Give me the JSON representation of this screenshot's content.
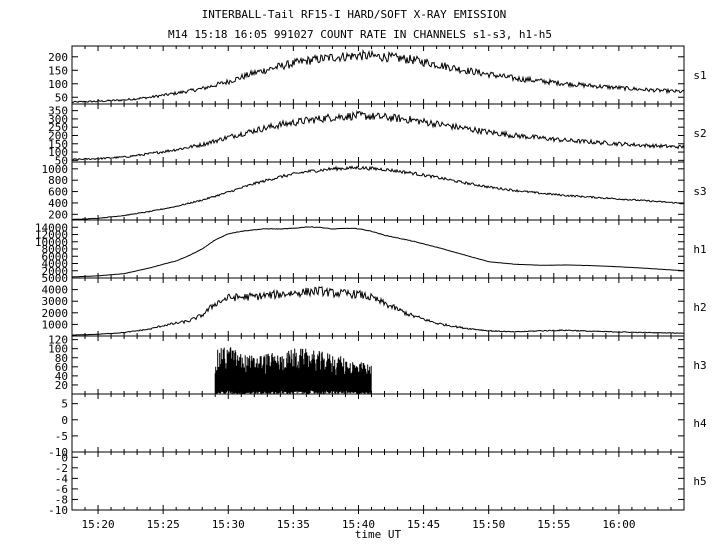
{
  "chart_data": {
    "type": "line",
    "title": "INTERBALL-Tail RF15-I HARD/SOFT X-RAY EMISSION",
    "subtitle": "M14  15:18 16:05 991027  COUNT RATE IN CHANNELS s1-s3, h1-h5",
    "xlabel": "time UT",
    "xlim": [
      "15:18",
      "16:05"
    ],
    "x_ticks": [
      "15:20",
      "15:25",
      "15:30",
      "15:35",
      "15:40",
      "15:45",
      "15:50",
      "15:55",
      "16:00"
    ],
    "panels": [
      {
        "name": "s1",
        "ylim": [
          25,
          240
        ],
        "y_ticks": [
          "200",
          "150",
          "100",
          "50"
        ],
        "x": [
          "15:18",
          "15:20",
          "15:22",
          "15:24",
          "15:26",
          "15:28",
          "15:30",
          "15:32",
          "15:34",
          "15:36",
          "15:38",
          "15:40",
          "15:42",
          "15:44",
          "15:46",
          "15:48",
          "15:50",
          "15:52",
          "15:54",
          "15:56",
          "15:58",
          "16:00",
          "16:02",
          "16:05"
        ],
        "y": [
          32,
          35,
          40,
          50,
          65,
          82,
          108,
          140,
          165,
          185,
          198,
          205,
          200,
          190,
          172,
          152,
          135,
          120,
          110,
          100,
          92,
          85,
          78,
          70
        ]
      },
      {
        "name": "s2",
        "ylim": [
          40,
          390
        ],
        "y_ticks": [
          "350",
          "300",
          "250",
          "200",
          "150",
          "100",
          "50"
        ],
        "x": [
          "15:18",
          "15:20",
          "15:22",
          "15:24",
          "15:26",
          "15:28",
          "15:30",
          "15:32",
          "15:34",
          "15:36",
          "15:38",
          "15:40",
          "15:42",
          "15:44",
          "15:46",
          "15:48",
          "15:50",
          "15:52",
          "15:54",
          "15:56",
          "15:58",
          "16:00",
          "16:02",
          "16:05"
        ],
        "y": [
          55,
          60,
          70,
          90,
          115,
          145,
          190,
          230,
          265,
          290,
          310,
          320,
          310,
          295,
          270,
          245,
          220,
          200,
          185,
          170,
          160,
          150,
          140,
          130
        ]
      },
      {
        "name": "s3",
        "ylim": [
          100,
          1120
        ],
        "y_ticks": [
          "1000",
          "800",
          "600",
          "400",
          "200"
        ],
        "x": [
          "15:18",
          "15:20",
          "15:22",
          "15:24",
          "15:26",
          "15:28",
          "15:30",
          "15:32",
          "15:34",
          "15:36",
          "15:38",
          "15:40",
          "15:42",
          "15:44",
          "15:46",
          "15:48",
          "15:50",
          "15:52",
          "15:54",
          "15:56",
          "15:58",
          "16:00",
          "16:02",
          "16:05"
        ],
        "y": [
          110,
          130,
          180,
          250,
          340,
          450,
          590,
          740,
          860,
          950,
          1000,
          1020,
          990,
          930,
          850,
          760,
          680,
          620,
          570,
          530,
          500,
          470,
          440,
          390
        ]
      },
      {
        "name": "h1",
        "ylim": [
          0,
          16000
        ],
        "y_ticks": [
          "14000",
          "12000",
          "10000",
          "8000",
          "6000",
          "4000",
          "2000"
        ],
        "x": [
          "15:18",
          "15:20",
          "15:22",
          "15:24",
          "15:25",
          "15:26",
          "15:27",
          "15:28",
          "15:29",
          "15:30",
          "15:31",
          "15:32",
          "15:33",
          "15:34",
          "15:35",
          "15:36",
          "15:37",
          "15:38",
          "15:39",
          "15:40",
          "15:41",
          "15:42",
          "15:44",
          "15:46",
          "15:48",
          "15:50",
          "15:52",
          "15:54",
          "15:56",
          "15:58",
          "16:00",
          "16:02",
          "16:05"
        ],
        "y": [
          300,
          600,
          1200,
          2800,
          3800,
          4700,
          6200,
          8000,
          10500,
          12200,
          12900,
          13300,
          13600,
          13500,
          13700,
          14100,
          14000,
          13500,
          13700,
          13600,
          12900,
          11800,
          10300,
          8500,
          6500,
          4500,
          3800,
          3500,
          3600,
          3400,
          3100,
          2700,
          2000
        ]
      },
      {
        "name": "h2",
        "ylim": [
          0,
          5000
        ],
        "y_ticks": [
          "5000",
          "4000",
          "3000",
          "2000",
          "1000"
        ],
        "x": [
          "15:18",
          "15:20",
          "15:22",
          "15:24",
          "15:25",
          "15:26",
          "15:27",
          "15:28",
          "15:29",
          "15:30",
          "15:32",
          "15:34",
          "15:35",
          "15:36",
          "15:37",
          "15:38",
          "15:40",
          "15:41",
          "15:42",
          "15:44",
          "15:46",
          "15:48",
          "15:50",
          "15:52",
          "15:54",
          "15:56",
          "15:58",
          "16:00",
          "16:02",
          "16:05"
        ],
        "y": [
          80,
          150,
          300,
          600,
          900,
          1100,
          1300,
          1800,
          2800,
          3300,
          3400,
          3600,
          3700,
          3800,
          3900,
          3700,
          3600,
          3300,
          2800,
          1800,
          1100,
          700,
          450,
          350,
          450,
          500,
          400,
          350,
          300,
          250
        ]
      },
      {
        "name": "h3",
        "ylim": [
          0,
          128
        ],
        "y_ticks": [
          "120",
          "100",
          "80",
          "60",
          "40",
          "20"
        ],
        "x": [
          "15:29",
          "15:30",
          "15:31",
          "15:32",
          "15:33",
          "15:34",
          "15:35",
          "15:36",
          "15:37",
          "15:38",
          "15:39",
          "15:40",
          "15:41"
        ],
        "y": [
          95,
          110,
          90,
          85,
          92,
          88,
          102,
          100,
          95,
          90,
          80,
          72,
          65
        ]
      },
      {
        "name": "h4",
        "ylim": [
          -10,
          8
        ],
        "y_ticks": [
          "5",
          "0",
          "-5",
          "-10"
        ],
        "x": [],
        "y": []
      },
      {
        "name": "h5",
        "ylim": [
          -10,
          1
        ],
        "y_ticks": [
          "-10",
          "-8",
          "-6",
          "-4",
          "-2",
          "0"
        ],
        "x": [],
        "y": []
      }
    ]
  }
}
